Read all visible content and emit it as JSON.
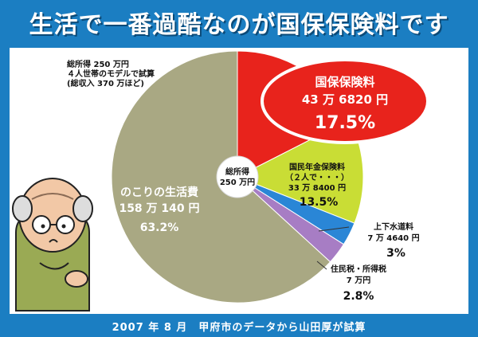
{
  "title": "生活で一番過酷なのが国保保険料です",
  "footer": "2007 年 8 月　甲府市のデータから山田厚が試算",
  "note_lines": [
    "総所得 250 万円",
    "４人世帯のモデルで試算",
    "(総収入 370 万ほど)"
  ],
  "center_label": [
    "総所得",
    "250 万円"
  ],
  "colors": {
    "background": "#1b7ec2",
    "kokuho": "#e8231c",
    "nenkin": "#c9dd35",
    "water": "#2a86d6",
    "tax": "#a77dc4",
    "remaining": "#a9a883"
  },
  "chart_data": {
    "type": "pie",
    "title": "生活で一番過酷なのが国保保険料です",
    "total_label": "総所得 250 万円",
    "slices": [
      {
        "key": "kokuho",
        "lines": [
          "国保保険料",
          "43 万 6820 円"
        ],
        "percent_label": "17.5%",
        "value": 17.5,
        "color": "#e8231c"
      },
      {
        "key": "nenkin",
        "lines": [
          "国民年金保険料",
          "（２人で・・・）",
          "33 万 8400 円"
        ],
        "percent_label": "13.5%",
        "value": 13.5,
        "color": "#c9dd35"
      },
      {
        "key": "water",
        "lines": [
          "上下水道料",
          "7 万 4640 円"
        ],
        "percent_label": "3%",
        "value": 3,
        "color": "#2a86d6"
      },
      {
        "key": "tax",
        "lines": [
          "住民税・所得税",
          "7 万円"
        ],
        "percent_label": "2.8%",
        "value": 2.8,
        "color": "#a77dc4"
      },
      {
        "key": "remaining",
        "lines": [
          "のこりの生活費",
          "158 万 140 円"
        ],
        "percent_label": "63.2%",
        "value": 63.2,
        "color": "#a9a883"
      }
    ]
  }
}
